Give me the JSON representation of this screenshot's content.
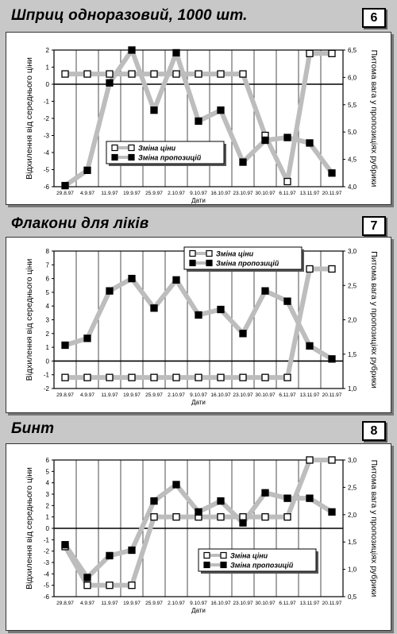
{
  "charts": [
    {
      "number": "6",
      "title": "Шприц одноразовий, 1000 шт.",
      "legend": [
        "Зміна ціни",
        "Зміна пропозицій"
      ]
    },
    {
      "number": "7",
      "title": "Флакони для ліків",
      "legend": [
        "Зміна ціни",
        "Зміна пропозицій"
      ]
    },
    {
      "number": "8",
      "title": "Бинт",
      "legend": [
        "Зміна ціни",
        "Зміна пропозицій"
      ]
    }
  ],
  "chart_data": [
    {
      "type": "line",
      "title": "Шприц одноразовий, 1000 шт.",
      "xlabel": "Дати",
      "ylabel": "Відхилення від середнього ціни",
      "y2label": "Питома вага у пропозиціях рубрики",
      "categories": [
        "29.8.97",
        "4.9.97",
        "11.9.97",
        "19.9.97",
        "25.9.97",
        "2.10.97",
        "9.10.97",
        "16.10.97",
        "23.10.97",
        "30.10.97",
        "6.11.97",
        "13.11.97",
        "20.11.97"
      ],
      "ylim": [
        -6,
        2
      ],
      "yticks": [
        "2",
        "1",
        "0",
        "-1",
        "-2",
        "-3",
        "-4",
        "-5",
        "-6"
      ],
      "y2lim": [
        4.0,
        6.5
      ],
      "y2ticks": [
        "6,5",
        "6,0",
        "5,5",
        "5,0",
        "4,5",
        "4,0"
      ],
      "legend_position": "center",
      "series": [
        {
          "name": "Зміна ціни",
          "axis": "left",
          "marker": "open-square",
          "values": [
            0.6,
            0.6,
            0.6,
            0.6,
            0.6,
            0.6,
            0.6,
            0.6,
            0.6,
            -3.0,
            -5.7,
            1.8,
            1.8
          ]
        },
        {
          "name": "Зміна пропозицій",
          "axis": "right",
          "marker": "filled-square",
          "values": [
            4.02,
            4.3,
            5.9,
            6.5,
            5.4,
            6.45,
            5.2,
            5.4,
            4.45,
            4.85,
            4.9,
            4.8,
            4.25
          ]
        }
      ]
    },
    {
      "type": "line",
      "title": "Флакони для ліків",
      "xlabel": "Дати",
      "ylabel": "Відхилення від середнього ціни",
      "y2label": "Питома вага у пропозиціях рубрики",
      "categories": [
        "29.8.97",
        "4.9.97",
        "11.9.97",
        "19.9.97",
        "25.9.97",
        "2.10.97",
        "9.10.97",
        "16.10.97",
        "23.10.97",
        "30.10.97",
        "6.11.97",
        "13.11.97",
        "20.11.97"
      ],
      "ylim": [
        -2,
        8
      ],
      "yticks": [
        "8",
        "7",
        "6",
        "5",
        "4",
        "3",
        "2",
        "1",
        "0",
        "-1",
        "-2"
      ],
      "y2lim": [
        1.0,
        3.0
      ],
      "y2ticks": [
        "3,0",
        "2,5",
        "2,0",
        "1,5",
        "1,0"
      ],
      "legend_position": "top-right",
      "series": [
        {
          "name": "Зміна ціни",
          "axis": "left",
          "marker": "open-square",
          "values": [
            -1.2,
            -1.2,
            -1.2,
            -1.2,
            -1.2,
            -1.2,
            -1.2,
            -1.2,
            -1.2,
            -1.2,
            -1.2,
            6.7,
            6.7
          ]
        },
        {
          "name": "Зміна пропозицій",
          "axis": "right",
          "marker": "filled-square",
          "values": [
            1.63,
            1.73,
            2.42,
            2.6,
            2.17,
            2.58,
            2.07,
            2.15,
            1.8,
            2.42,
            2.27,
            1.62,
            1.43
          ]
        }
      ]
    },
    {
      "type": "line",
      "title": "Бинт",
      "xlabel": "Дати",
      "ylabel": "Відхилення від середнього ціни",
      "y2label": "Питома вага у пропозиціях рубрики",
      "categories": [
        "29.8.97",
        "4.9.97",
        "11.9.97",
        "19.9.97",
        "25.9.97",
        "2.10.97",
        "9.10.97",
        "16.10.97",
        "23.10.97",
        "30.10.97",
        "6.11.97",
        "13.11.97",
        "20.11.97"
      ],
      "ylim": [
        -6,
        6
      ],
      "yticks": [
        "6",
        "5",
        "4",
        "3",
        "2",
        "1",
        "0",
        "-1",
        "-2",
        "-3",
        "-4",
        "-5",
        "-6"
      ],
      "y2lim": [
        0.5,
        3.0
      ],
      "y2ticks": [
        "3,0",
        "2,5",
        "2,0",
        "1,5",
        "1,0",
        "0,5"
      ],
      "legend_position": "bottom-center",
      "series": [
        {
          "name": "Зміна ціни",
          "axis": "left",
          "marker": "open-square",
          "values": [
            -1.6,
            -5.0,
            -5.0,
            -5.0,
            1.0,
            1.0,
            1.0,
            1.0,
            1.0,
            1.0,
            1.0,
            6.0,
            6.0
          ]
        },
        {
          "name": "Зміна пропозицій",
          "axis": "right",
          "marker": "filled-square",
          "values": [
            1.45,
            0.85,
            1.25,
            1.35,
            2.25,
            2.55,
            2.05,
            2.25,
            1.85,
            2.4,
            2.3,
            2.3,
            2.05
          ]
        }
      ]
    }
  ]
}
